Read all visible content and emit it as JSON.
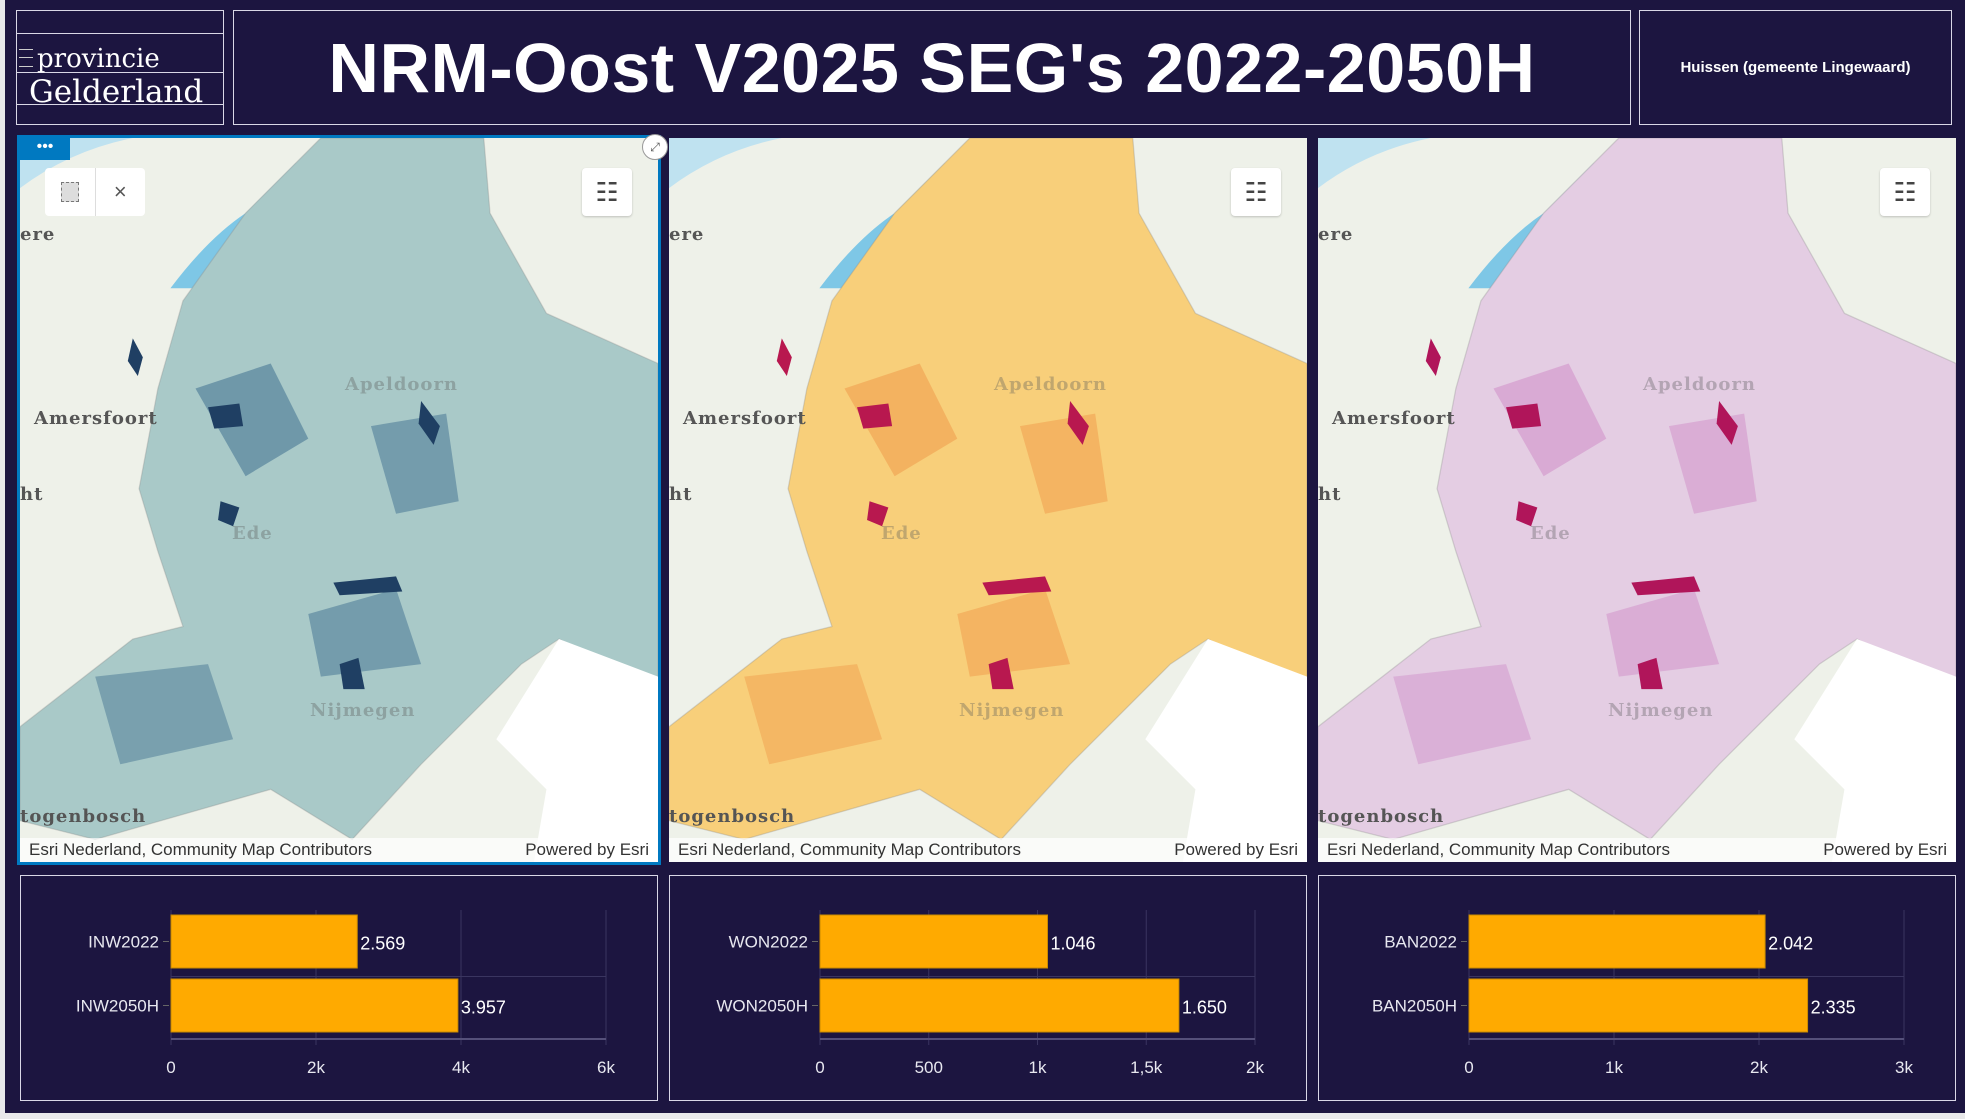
{
  "logo": {
    "line1": "provincie",
    "line2": "Gelderland"
  },
  "header": {
    "title": "NRM-Oost V2025 SEG's 2022-2050H",
    "location": "Huissen (gemeente Lingewaard)"
  },
  "maps": [
    {
      "fill": "#a9c9c8",
      "accent": "#3f6f8f",
      "dark": "#1f3f63"
    },
    {
      "fill": "#f8cf7a",
      "accent": "#ef9a4a",
      "dark": "#b8184f"
    },
    {
      "fill": "#e4cde3",
      "accent": "#cf8ec8",
      "dark": "#b0155a"
    }
  ],
  "map_labels": {
    "ere": "ere",
    "amersfoort": "Amersfoort",
    "ht": "ht",
    "apeldoorn": "Apeldoorn",
    "ede": "Ede",
    "nijmegen": "Nijmegen",
    "hertogenbosch": "togenbosch"
  },
  "attribution": {
    "left": "Esri Nederland, Community Map Contributors",
    "right": "Powered by Esri"
  },
  "icons": {
    "dots": "•••",
    "close": "×",
    "legend": "☷",
    "expand": "⤢"
  },
  "chart_data": [
    {
      "type": "bar",
      "orientation": "horizontal",
      "categories": [
        "INW2022",
        "INW2050H"
      ],
      "values": [
        2569,
        3957
      ],
      "labels": [
        "2.569",
        "3.957"
      ],
      "xlim": [
        0,
        6000
      ],
      "ticks": [
        0,
        2000,
        4000,
        6000
      ],
      "tick_labels": [
        "0",
        "2k",
        "4k",
        "6k"
      ],
      "color": "#ffaa00"
    },
    {
      "type": "bar",
      "orientation": "horizontal",
      "categories": [
        "WON2022",
        "WON2050H"
      ],
      "values": [
        1046,
        1650
      ],
      "labels": [
        "1.046",
        "1.650"
      ],
      "xlim": [
        0,
        2000
      ],
      "ticks": [
        0,
        500,
        1000,
        1500,
        2000
      ],
      "tick_labels": [
        "0",
        "500",
        "1k",
        "1,5k",
        "2k"
      ],
      "color": "#ffaa00"
    },
    {
      "type": "bar",
      "orientation": "horizontal",
      "categories": [
        "BAN2022",
        "BAN2050H"
      ],
      "values": [
        2042,
        2335
      ],
      "labels": [
        "2.042",
        "2.335"
      ],
      "xlim": [
        0,
        3000
      ],
      "ticks": [
        0,
        1000,
        2000,
        3000
      ],
      "tick_labels": [
        "0",
        "1k",
        "2k",
        "3k"
      ],
      "color": "#ffaa00"
    }
  ]
}
